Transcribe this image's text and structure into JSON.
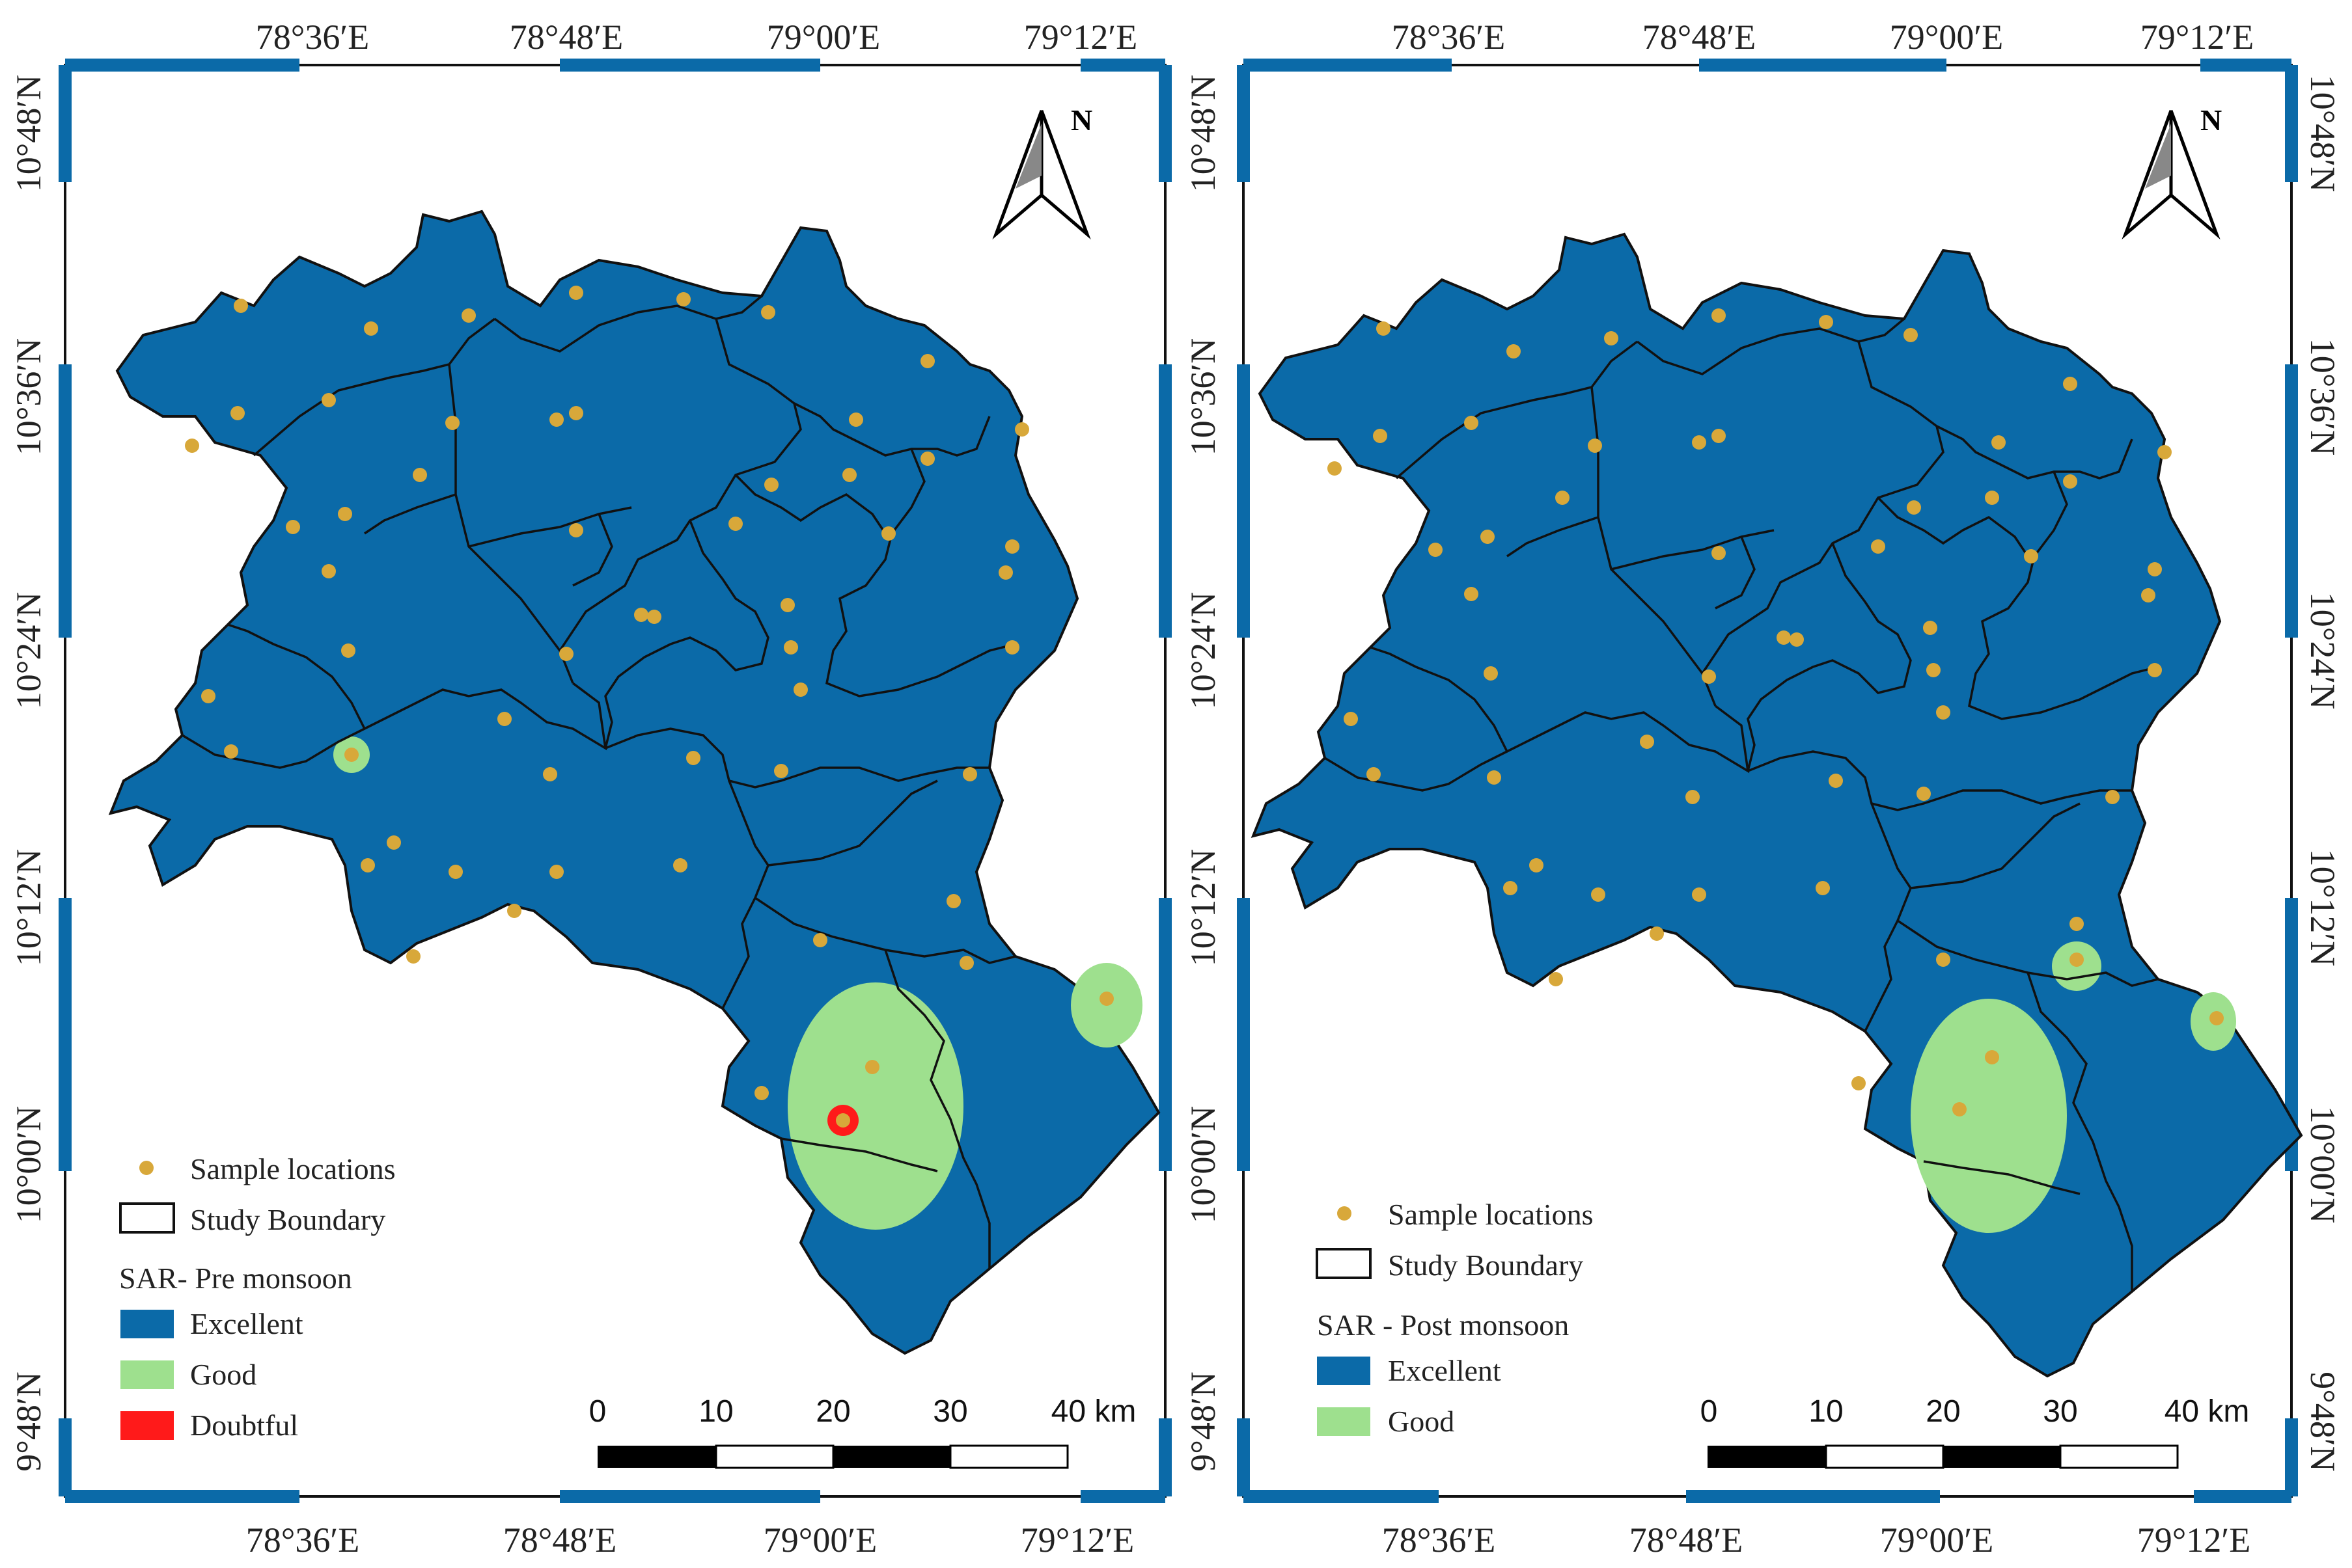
{
  "colors": {
    "excellent": "#0b6aa8",
    "good": "#9ee08e",
    "doubtful": "#ff1a1a",
    "sample": "#d8a83a",
    "frame_blue": "#0b6aa8",
    "boundary": "#111111"
  },
  "graticule": {
    "lon_labels": [
      "78°36′E",
      "78°48′E",
      "79°00′E",
      "79°12′E"
    ],
    "lat_labels": [
      "10°48′N",
      "10°36′N",
      "10°24′N",
      "10°12′N",
      "10°00′N",
      "9°48′N"
    ]
  },
  "north_label": "N",
  "scale_bar": {
    "labels": [
      "0",
      "10",
      "20",
      "30"
    ],
    "end_label": "40 km"
  },
  "maps": [
    {
      "legend": {
        "sample_label": "Sample locations",
        "boundary_label": "Study Boundary",
        "title": "SAR- Pre monsoon",
        "classes": [
          {
            "label": "Excellent",
            "color_key": "excellent"
          },
          {
            "label": "Good",
            "color_key": "good"
          },
          {
            "label": "Doubtful",
            "color_key": "doubtful"
          }
        ]
      }
    },
    {
      "legend": {
        "sample_label": "Sample locations",
        "boundary_label": "Study Boundary",
        "title": "SAR - Post monsoon",
        "classes": [
          {
            "label": "Excellent",
            "color_key": "excellent"
          },
          {
            "label": "Good",
            "color_key": "good"
          }
        ]
      }
    }
  ]
}
